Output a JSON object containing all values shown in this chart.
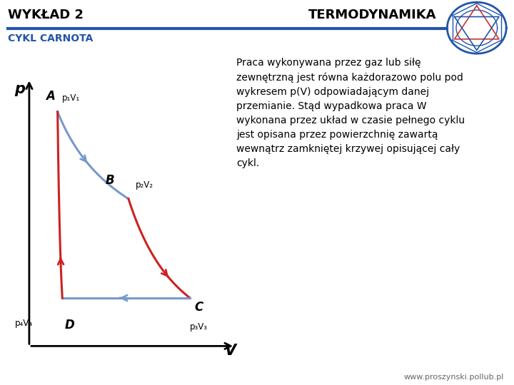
{
  "title_left": "WYKŁAD 2",
  "title_right": "TERMODYNAMIKA",
  "subtitle": "CYKL CARNOTA",
  "header_line_color": "#2255aa",
  "header_bg": "#ffffff",
  "title_color": "#000000",
  "subtitle_color": "#2255aa",
  "body_bg": "#ffffff",
  "text_block": "Praca wykonywana przez gaz lub siłę\nzewnętrzną jest równa każdorazowo polu pod\nwykresem p(V) odpowiadającym danej\nprzemianie. Stąd wypadkowa praca W\nwykonana przez układ w czasie pełnego cyklu\njest opisana przez powierzchnię zawartą\nwewnątrz zamkniętej krzywej opisującej cały\ncykl.",
  "color_upper": "#7799cc",
  "color_lower": "#cc2222",
  "axis_color": "#000000",
  "xlabel": "V",
  "ylabel": "p",
  "footer_text": "www.proszynski.pollub.pl",
  "label_A": "A",
  "label_B": "B",
  "label_C": "C",
  "label_D": "D",
  "label_p1v1": "p₁V₁",
  "label_p2v2": "p₂V₂",
  "label_p3v3": "p₃V₃",
  "label_p4v4": "p₄V₄"
}
